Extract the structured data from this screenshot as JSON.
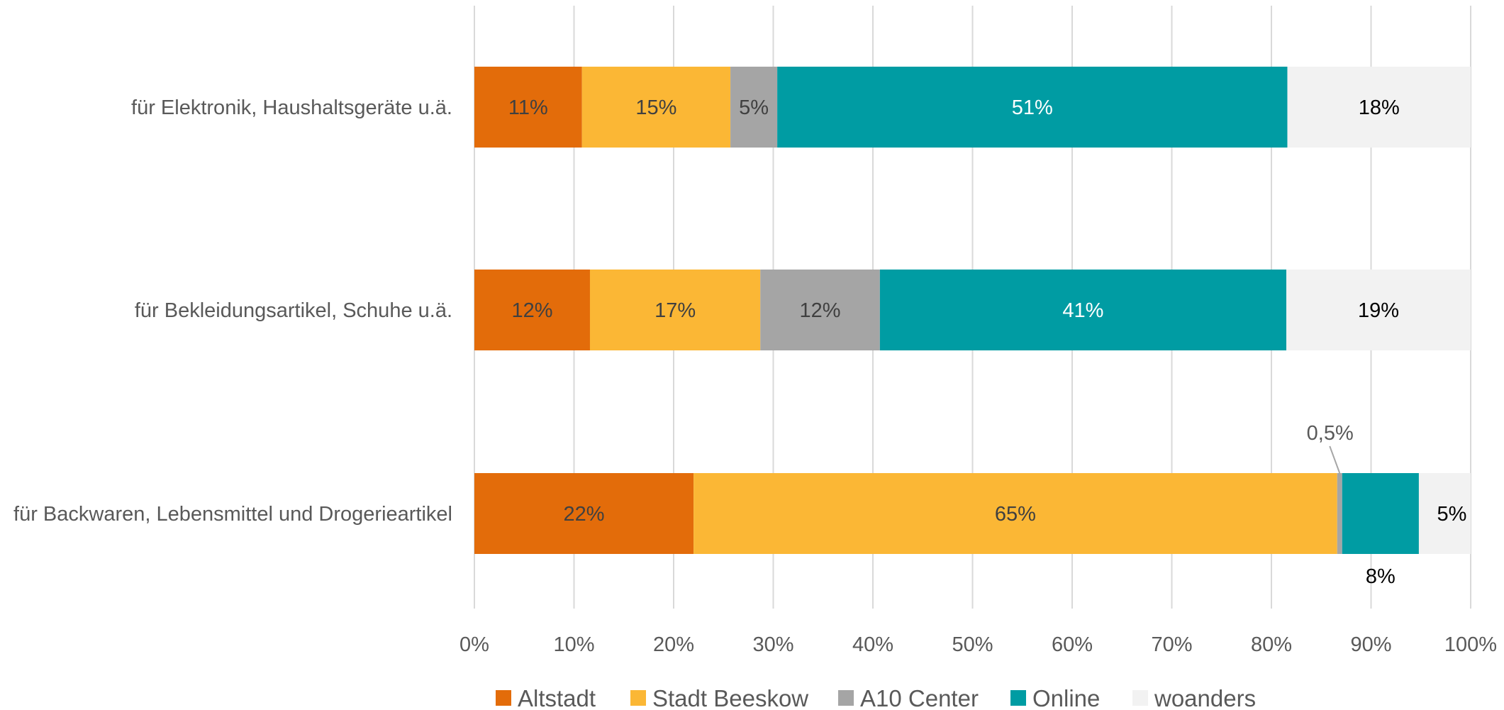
{
  "chart_data": {
    "type": "bar",
    "orientation": "horizontal",
    "stacked": "percent",
    "categories": [
      "für Elektronik, Haushaltsgeräte u.ä.",
      "für Bekleidungsartikel, Schuhe u.ä.",
      "für Backwaren, Lebensmittel und Drogerieartikel"
    ],
    "series": [
      {
        "name": "Altstadt",
        "color": "#E36C0A",
        "label_color": "#404040",
        "values": [
          10.8,
          11.6,
          22.0
        ],
        "labels": [
          "11%",
          "12%",
          "22%"
        ]
      },
      {
        "name": "Stadt Beeskow",
        "color": "#FBB735",
        "label_color": "#404040",
        "values": [
          14.9,
          17.1,
          64.6
        ],
        "labels": [
          "15%",
          "17%",
          "65%"
        ]
      },
      {
        "name": "A10 Center",
        "color": "#A5A5A5",
        "label_color": "#404040",
        "values": [
          4.7,
          12.0,
          0.5
        ],
        "labels": [
          "5%",
          "12%",
          "0,5%"
        ]
      },
      {
        "name": "Online",
        "color": "#009CA3",
        "label_color": "#ffffff",
        "values": [
          51.2,
          40.8,
          7.7
        ],
        "labels": [
          "51%",
          "41%",
          "8%"
        ]
      },
      {
        "name": "woanders",
        "color": "#F2F2F2",
        "label_color": "#000000",
        "values": [
          18.4,
          18.5,
          5.2
        ],
        "labels": [
          "18%",
          "19%",
          "5%"
        ]
      }
    ],
    "xaxis": {
      "min": 0,
      "max": 100,
      "ticks": [
        0,
        10,
        20,
        30,
        40,
        50,
        60,
        70,
        80,
        90,
        100
      ],
      "tick_labels": [
        "0%",
        "10%",
        "20%",
        "30%",
        "40%",
        "50%",
        "60%",
        "70%",
        "80%",
        "90%",
        "100%"
      ]
    },
    "grid": "vertical",
    "legend_position": "bottom",
    "title": "",
    "xlabel": "",
    "ylabel": ""
  }
}
